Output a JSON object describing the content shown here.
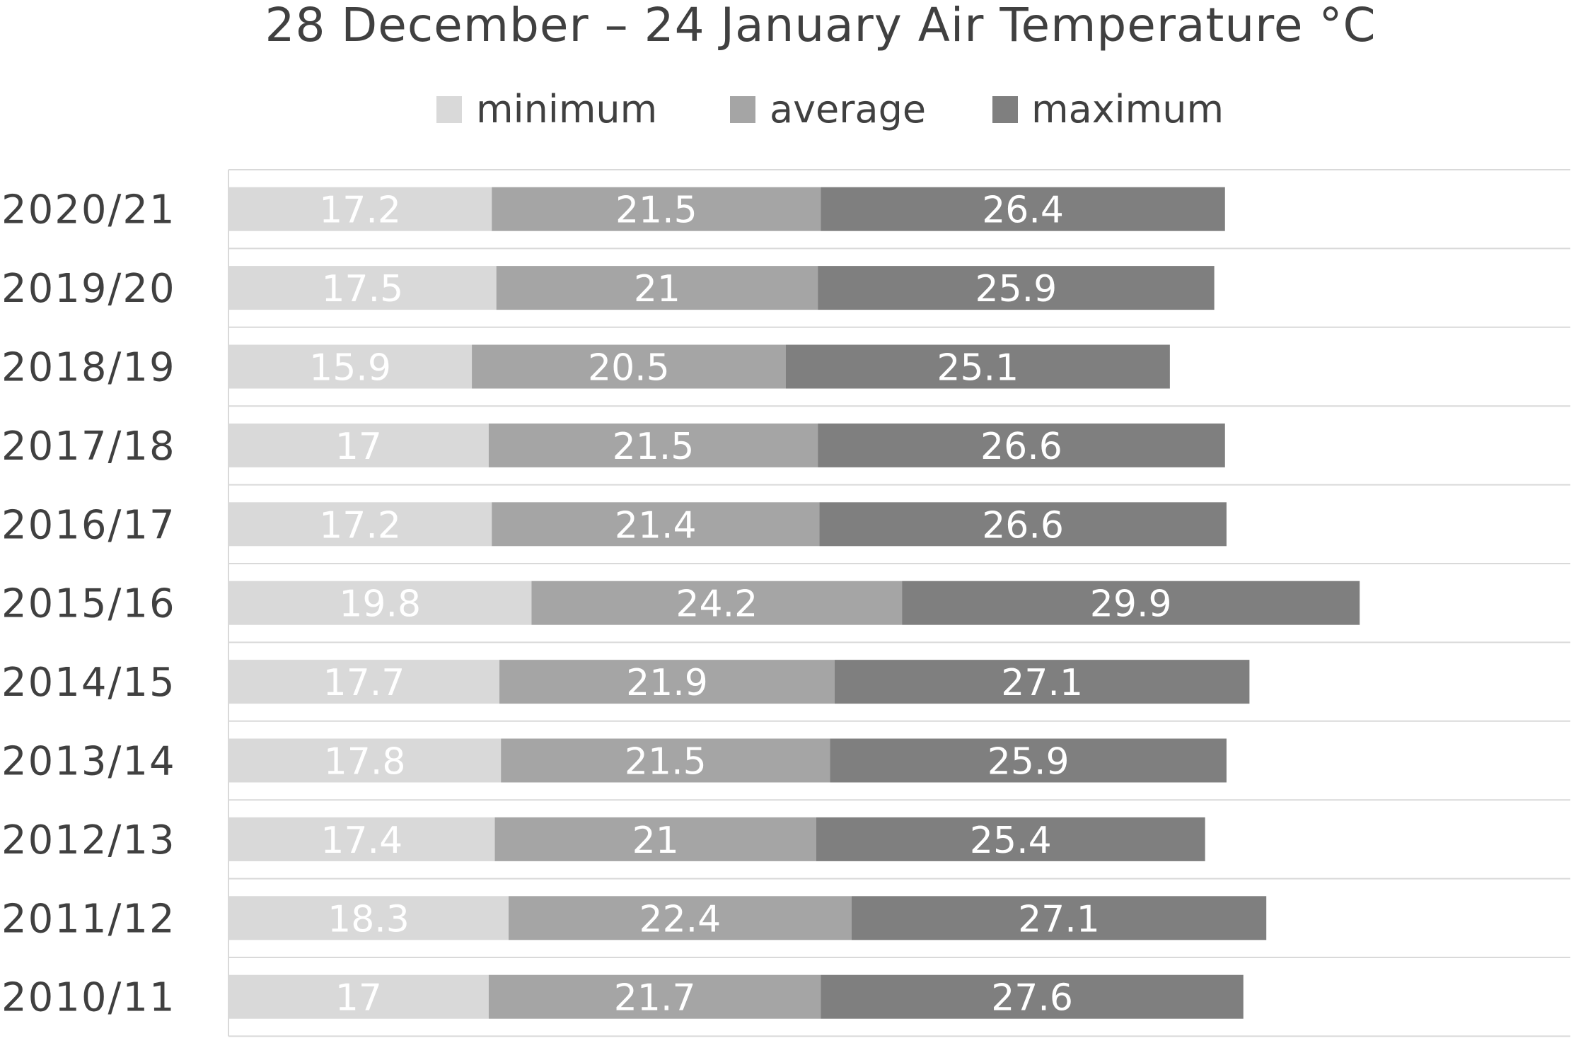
{
  "chart_data": {
    "type": "bar",
    "orientation": "horizontal",
    "stacked": true,
    "title": "28 December – 24 January Air Temperature °C",
    "xlabel": "",
    "ylabel": "",
    "legend_position": "top",
    "grid": true,
    "categories": [
      "2020/21",
      "2019/20",
      "2018/19",
      "2017/18",
      "2016/17",
      "2015/16",
      "2014/15",
      "2013/14",
      "2012/13",
      "2011/12",
      "2010/11"
    ],
    "series": [
      {
        "name": "minimum",
        "color": "#d9d9d9",
        "values": [
          17.2,
          17.5,
          15.9,
          17,
          17.2,
          19.8,
          17.7,
          17.8,
          17.4,
          18.3,
          17
        ]
      },
      {
        "name": "average",
        "color": "#a5a5a5",
        "values": [
          21.5,
          21,
          20.5,
          21.5,
          21.4,
          24.2,
          21.9,
          21.5,
          21,
          22.4,
          21.7
        ]
      },
      {
        "name": "maximum",
        "color": "#7f7f7f",
        "values": [
          26.4,
          25.9,
          25.1,
          26.6,
          26.6,
          29.9,
          27.1,
          25.9,
          25.4,
          27.1,
          27.6
        ]
      }
    ],
    "xlim": [
      0,
      80
    ]
  }
}
